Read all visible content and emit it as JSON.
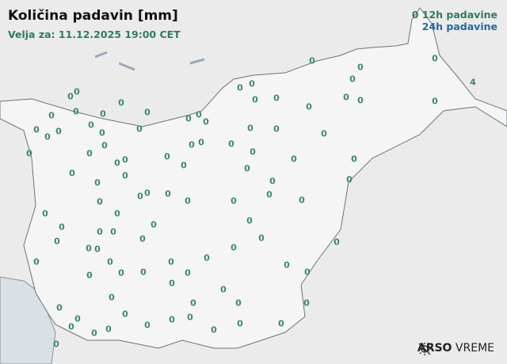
{
  "title": "Količina padavin [mm]",
  "valid_for": "Velja za: 11.12.2025 19:00 CET",
  "legend": {
    "sample_value": "0",
    "h12": "12h padavine",
    "h24": "24h padavine",
    "h12_color": "#2e7d5b",
    "h24_color": "#1f6aa5"
  },
  "logo": {
    "icon": "sun-slash-icon",
    "brand": "ARSO",
    "product": "VREME"
  },
  "stations": [
    "0",
    "0",
    "0",
    "0",
    "4",
    "0",
    "0",
    "0",
    "0",
    "0",
    "0",
    "0",
    "0",
    "0",
    "0",
    "0",
    "0",
    "0",
    "0",
    "0",
    "0",
    "0",
    "0",
    "0",
    "0",
    "0",
    "0",
    "0",
    "0",
    "0",
    "0",
    "0",
    "0",
    "0",
    "0",
    "0",
    "0",
    "0",
    "0",
    "0",
    "0",
    "0",
    "0",
    "0",
    "0",
    "0",
    "0",
    "0",
    "0",
    "0",
    "0",
    "0",
    "0",
    "0",
    "0",
    "0",
    "0",
    "0",
    "0",
    "0",
    "0",
    "0",
    "0",
    "0",
    "0",
    "0",
    "0",
    "0",
    "0",
    "0",
    "0",
    "0",
    "0",
    "0",
    "0",
    "0",
    "0",
    "0",
    "0",
    "0",
    "0",
    "0",
    "0",
    "0",
    "0",
    "0",
    "0",
    "0",
    "0",
    "0",
    "0",
    "0",
    "0",
    "0",
    "0",
    "0",
    "0",
    "0",
    "0",
    "0",
    "0",
    "0",
    "0"
  ]
}
